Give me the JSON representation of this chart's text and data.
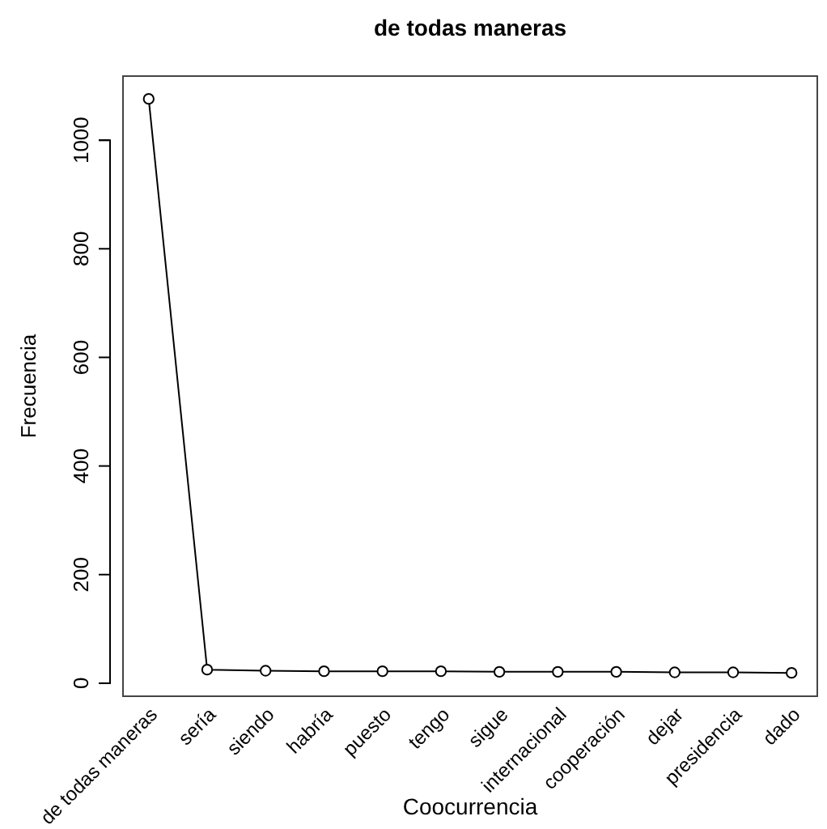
{
  "chart_data": {
    "type": "line",
    "title": "de todas maneras",
    "xlabel": "Coocurrencia",
    "ylabel": "Frecuencia",
    "categories": [
      "de todas maneras",
      "sería",
      "siendo",
      "habría",
      "puesto",
      "tengo",
      "sigue",
      "internacional",
      "cooperación",
      "dejar",
      "presidencia",
      "dado"
    ],
    "series": [
      {
        "color": "#000000",
        "values": [
          1076,
          25,
          23,
          22,
          22,
          22,
          21,
          21,
          21,
          20,
          20,
          19
        ]
      }
    ],
    "ylim": [
      -24,
      1118
    ],
    "yticks": [
      0,
      200,
      400,
      600,
      800,
      1000
    ],
    "marker": "circle",
    "line_style": "solid",
    "grid": false
  }
}
